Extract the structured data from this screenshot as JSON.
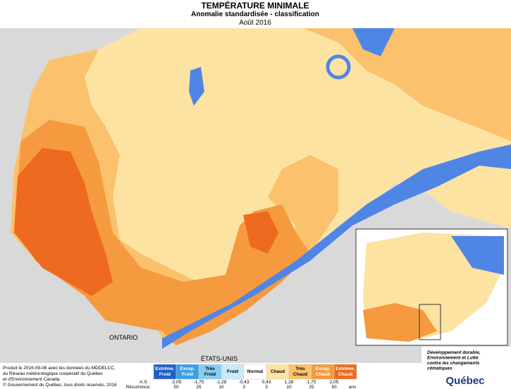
{
  "header": {
    "title": "TEMPÉRATURE MINIMALE",
    "subtitle": "Anomalie standardisée - classification",
    "period": "Août 2016"
  },
  "map_labels": {
    "ontario": "ONTARIO",
    "usa": "ÉTATS-UNIS"
  },
  "legend": {
    "classes": [
      {
        "label": "Extrême. Froid",
        "color": "#1f5fc4"
      },
      {
        "label": "Excep. Froid",
        "color": "#3d9fe3"
      },
      {
        "label": "Très Froid",
        "color": "#86cdf2"
      },
      {
        "label": "Froid",
        "color": "#c9eaf8"
      },
      {
        "label": "Normal",
        "color": "#ffffff"
      },
      {
        "label": "Chaud",
        "color": "#fde3a2"
      },
      {
        "label": "Très Chaud",
        "color": "#fbc16c"
      },
      {
        "label": "Excep. Chaud",
        "color": "#f59a3e"
      },
      {
        "label": "Extrême. Chaud",
        "color": "#ee6a20"
      }
    ],
    "as_label": "A.S. :",
    "as_values": [
      "-2,05",
      "-1,75",
      "-1,28",
      "-0,43",
      "0,43",
      "1,28",
      "1,75",
      "2,05"
    ],
    "recurrence_label": "Récurrence:",
    "recurrence_values": [
      "50",
      "25",
      "10",
      "3",
      "3",
      "10",
      "25",
      "50"
    ],
    "recurrence_unit": "ans"
  },
  "footer": {
    "credits": [
      "Produit le 2016-09-06 avec les données du MDDELCC,",
      "du Réseau météorologique coopératif du Québec",
      "et d'Environnement Canada."
    ],
    "copyright": "© Gouvernement du Québec, tous droits réservés, 2016"
  },
  "logo": {
    "ministry": [
      "Développement durable,",
      "Environnement et Lutte",
      "contre les changements",
      "climatiques"
    ],
    "name": "Québec"
  }
}
